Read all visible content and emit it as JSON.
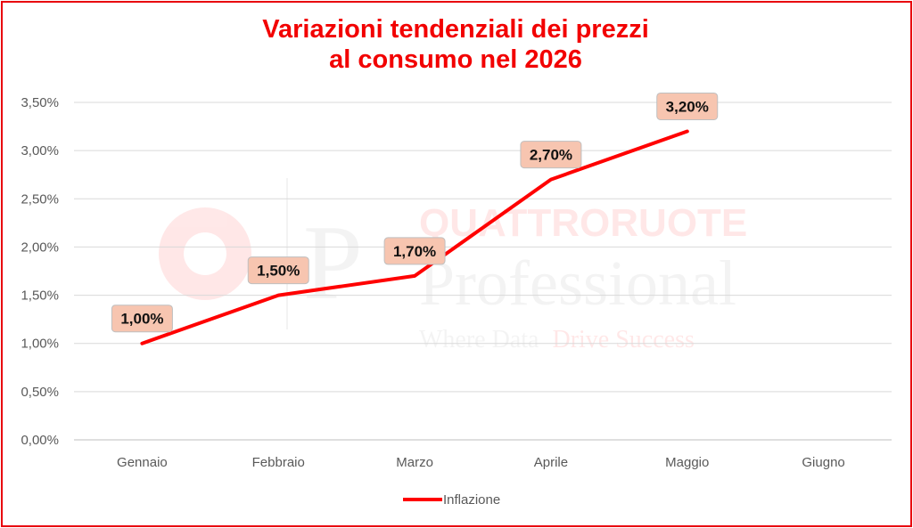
{
  "chart_data": {
    "type": "line",
    "title_line1": "Variazioni tendenziali dei prezzi",
    "title_line2": "al consumo nel 2026",
    "categories": [
      "Gennaio",
      "Febbraio",
      "Marzo",
      "Aprile",
      "Maggio",
      "Giugno"
    ],
    "series": [
      {
        "name": "Inflazione",
        "values": [
          1.0,
          1.5,
          1.7,
          2.7,
          3.2,
          null
        ],
        "labels": [
          "1,00%",
          "1,50%",
          "1,70%",
          "2,70%",
          "3,20%",
          null
        ]
      }
    ],
    "y_ticks": [
      "0,00%",
      "0,50%",
      "1,00%",
      "1,50%",
      "2,00%",
      "2,50%",
      "3,00%",
      "3,50%"
    ],
    "ylim": [
      0,
      3.5
    ],
    "grid": true,
    "legend": "bottom",
    "watermark": {
      "brand": "QUATTRORUOTE",
      "product": "Professional",
      "tagline_a": "Where Data",
      "tagline_b": "Drive Success"
    },
    "colors": {
      "line": "#ff0000",
      "title": "#f20000",
      "label_fill": "#f7c5b0",
      "label_border": "#bfbfbf",
      "grid": "#d9d9d9"
    }
  }
}
